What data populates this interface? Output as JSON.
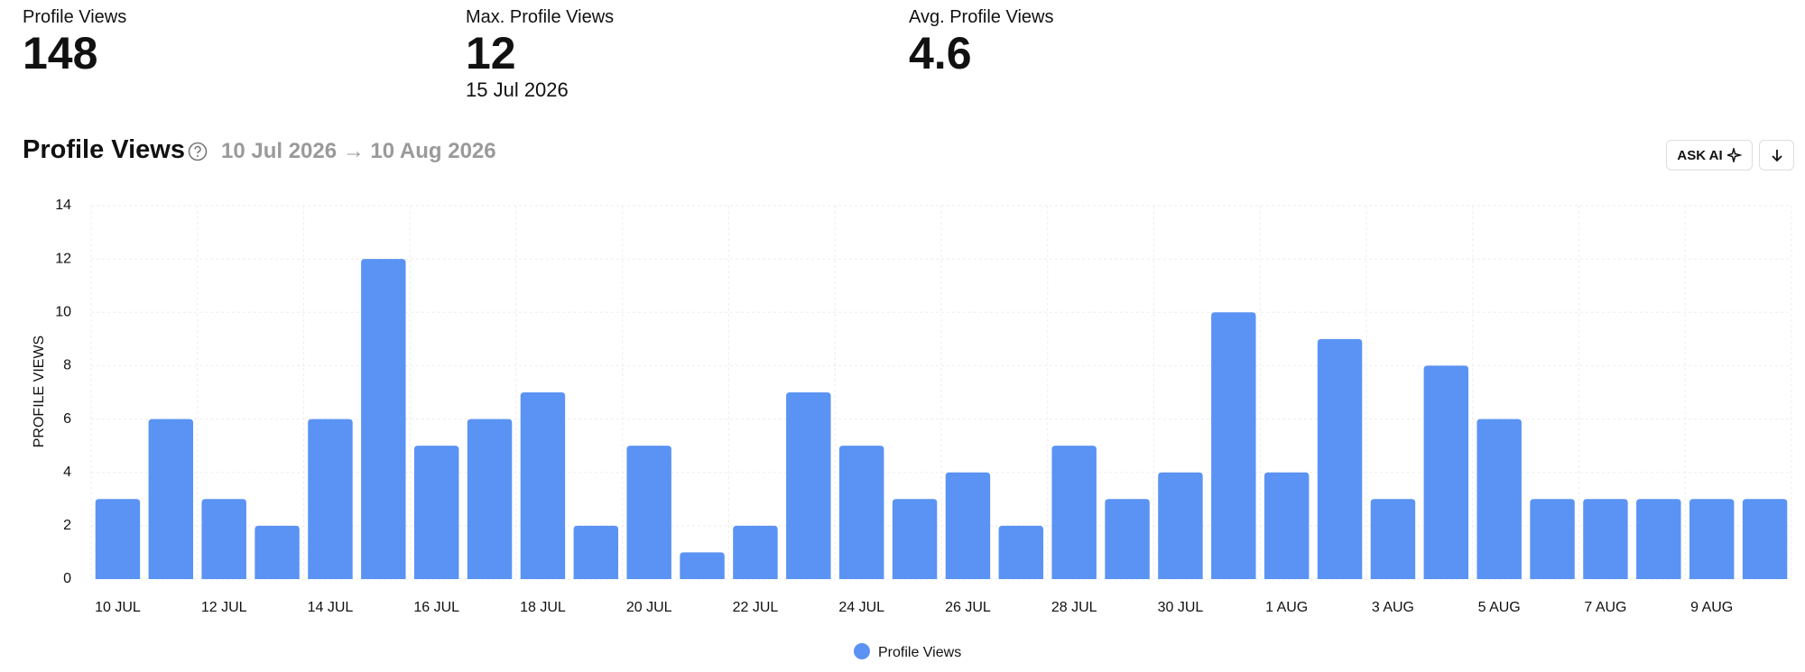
{
  "stats": [
    {
      "label": "Profile Views",
      "value": 148
    },
    {
      "label": "Max. Profile Views",
      "value": 12,
      "date": "15 Jul 2026"
    },
    {
      "label": "Avg. Profile Views",
      "value": 4.6
    }
  ],
  "header": {
    "title": "Profile Views",
    "range": "10 Jul 2026 → 10 Aug 2026",
    "ask_ai": "ASK AI"
  },
  "chart_data": {
    "type": "bar",
    "ylabel": "PROFILE VIEWS",
    "categories": [
      "10 JUL",
      null,
      "12 JUL",
      null,
      "14 JUL",
      null,
      "16 JUL",
      null,
      "18 JUL",
      null,
      "20 JUL",
      null,
      "22 JUL",
      null,
      "24 JUL",
      null,
      "26 JUL",
      null,
      "28 JUL",
      null,
      "30 JUL",
      null,
      "1 AUG",
      null,
      "3 AUG",
      null,
      "5 AUG",
      null,
      "7 AUG",
      null,
      "9 AUG",
      null
    ],
    "series": [
      {
        "name": "Profile Views",
        "color": "#5a93f3",
        "values": [
          3,
          6,
          3,
          2,
          6,
          12,
          5,
          6,
          7,
          2,
          5,
          1,
          2,
          7,
          5,
          3,
          4,
          2,
          5,
          3,
          4,
          10,
          4,
          9,
          3,
          8,
          6,
          3,
          3,
          3,
          3,
          3
        ]
      }
    ],
    "ylim": [
      0,
      14
    ],
    "yticks": [
      0,
      2,
      4,
      6,
      8,
      10,
      12,
      14
    ],
    "grid": true,
    "legend": "bottom"
  }
}
